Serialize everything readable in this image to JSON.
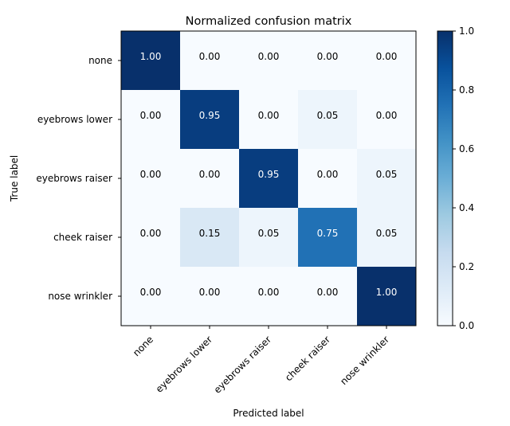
{
  "chart_data": {
    "type": "heatmap",
    "title": "Normalized confusion matrix",
    "xlabel": "Predicted label",
    "ylabel": "True label",
    "x_categories": [
      "none",
      "eyebrows lower",
      "eyebrows raiser",
      "cheek raiser",
      "nose wrinkler"
    ],
    "y_categories": [
      "none",
      "eyebrows lower",
      "eyebrows raiser",
      "cheek raiser",
      "nose wrinkler"
    ],
    "values": [
      [
        1.0,
        0.0,
        0.0,
        0.0,
        0.0
      ],
      [
        0.0,
        0.95,
        0.0,
        0.05,
        0.0
      ],
      [
        0.0,
        0.0,
        0.95,
        0.0,
        0.05
      ],
      [
        0.0,
        0.15,
        0.05,
        0.75,
        0.05
      ],
      [
        0.0,
        0.0,
        0.0,
        0.0,
        1.0
      ]
    ],
    "value_format": "0.00",
    "colormap": "Blues",
    "color_range": [
      0.0,
      1.0
    ],
    "colorbar_ticks": [
      "0.0",
      "0.2",
      "0.4",
      "0.6",
      "0.8",
      "1.0"
    ],
    "text_color_light": "#ffffff",
    "text_color_dark": "#000000"
  }
}
